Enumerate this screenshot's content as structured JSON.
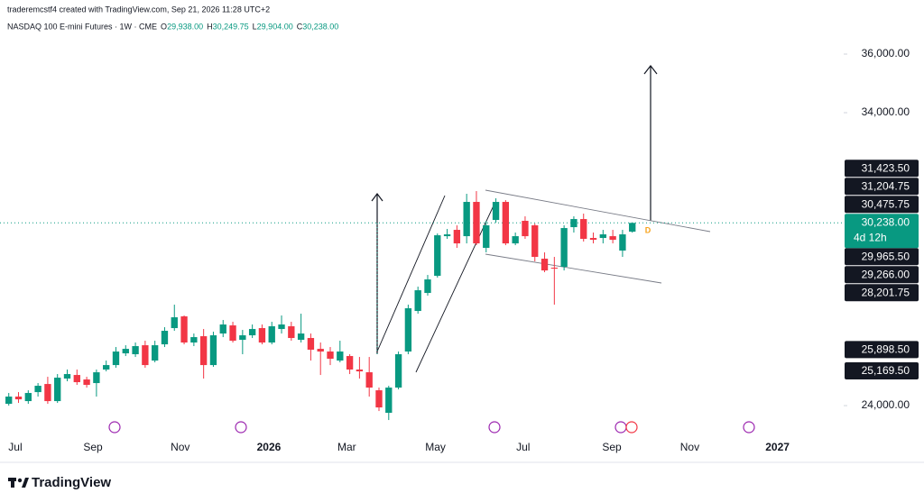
{
  "header": "traderemcstf4 created with TradingView.com, Sep 21, 2026 11:28 UTC+2",
  "footer": "TradingView",
  "chart_data": {
    "type": "candlestick",
    "title": "NASDAQ 100 E-mini Futures · 1W · CME",
    "ohlc_legend": [
      {
        "label": "O",
        "value": "29,938.00"
      },
      {
        "label": "H",
        "value": "30,249.75"
      },
      {
        "label": "L",
        "value": "29,904.00"
      },
      {
        "label": "C",
        "value": "30,238.00"
      }
    ],
    "up_color": "#089981",
    "down_color": "#f23645",
    "xlim": [
      -0.9,
      85.7
    ],
    "xticks": [
      {
        "value": 0.67,
        "label": "Jul"
      },
      {
        "value": 8.64,
        "label": "Sep"
      },
      {
        "value": 17.6,
        "label": "Nov"
      },
      {
        "value": 26.7,
        "label": "2026"
      },
      {
        "value": 34.7,
        "label": "Mar"
      },
      {
        "value": 43.8,
        "label": "May"
      },
      {
        "value": 52.8,
        "label": "Jul"
      },
      {
        "value": 61.9,
        "label": "Sep"
      },
      {
        "value": 69.9,
        "label": "Nov"
      },
      {
        "value": 78.9,
        "label": "2027"
      }
    ],
    "ylim": [
      23140,
      37385
    ],
    "yticks": [
      {
        "value": 24000,
        "label": "24,000.00"
      },
      {
        "value": 34000,
        "label": "34,000.00"
      },
      {
        "value": 36000,
        "label": "36,000.00"
      }
    ],
    "price_labels": [
      {
        "value": 31423.5,
        "label": "31,423.50"
      },
      {
        "value": 31204.75,
        "label": "31,204.75"
      },
      {
        "value": 30475.75,
        "label": "30,475.75"
      },
      {
        "value": 29965.5,
        "label": "29,965.50"
      },
      {
        "value": 29266,
        "label": "29,266.00"
      },
      {
        "value": 28201.75,
        "label": "28,201.75"
      },
      {
        "value": 25898.5,
        "label": "25,898.50"
      },
      {
        "value": 25169.5,
        "label": "25,169.50"
      }
    ],
    "last_price": {
      "value": 30238,
      "label": "30,238.00"
    },
    "countdown": "4d 12h",
    "open": [
      24061,
      24308,
      24154,
      24461,
      24738,
      24154,
      24923,
      25046,
      24892,
      24769,
      25231,
      25384,
      25784,
      25754,
      26061,
      25538,
      26092,
      26646,
      27046,
      26154,
      26369,
      25384,
      26461,
      26738,
      26246,
      26400,
      26646,
      26154,
      26615,
      26708,
      26246,
      26308,
      25938,
      25846,
      25538,
      25692,
      25231,
      25138,
      24523,
      23754,
      24615,
      25846,
      27231,
      27846,
      28431,
      29784,
      30000,
      29784,
      30954,
      29385,
      30338,
      30954,
      29538,
      30308,
      30154,
      29015,
      28708,
      28738,
      30092,
      30369,
      29723,
      29723,
      29784,
      29292,
      29938
    ],
    "high": [
      24431,
      24461,
      24523,
      24769,
      24984,
      25077,
      25231,
      25231,
      24984,
      25231,
      25538,
      26000,
      26061,
      26154,
      26215,
      26215,
      26677,
      27446,
      27077,
      26461,
      26615,
      26523,
      26923,
      26861,
      26584,
      26769,
      26769,
      26861,
      27077,
      26861,
      27138,
      26461,
      26154,
      26000,
      26215,
      25754,
      25661,
      25661,
      24615,
      24677,
      25846,
      27446,
      28061,
      28461,
      29877,
      30031,
      30154,
      31231,
      31323,
      30308,
      31077,
      31015,
      29908,
      30461,
      30215,
      29231,
      29077,
      30154,
      30461,
      30554,
      29908,
      30000,
      30000,
      30000,
      30249.75
    ],
    "low": [
      24000,
      24092,
      24061,
      24308,
      24061,
      24092,
      24831,
      24708,
      24615,
      24308,
      25169,
      25292,
      25692,
      25661,
      25292,
      25477,
      26000,
      26554,
      26092,
      26031,
      24923,
      25323,
      26338,
      26154,
      25754,
      26308,
      26092,
      26092,
      26461,
      26215,
      26154,
      25538,
      25046,
      25384,
      25477,
      25077,
      24923,
      24308,
      23815,
      23508,
      24554,
      25754,
      27138,
      27754,
      28369,
      29692,
      29385,
      29538,
      29477,
      29231,
      30246,
      29477,
      29477,
      29692,
      28923,
      28554,
      27446,
      28615,
      29908,
      29600,
      29538,
      29538,
      29538,
      29077,
      29904
    ],
    "close": [
      24308,
      24215,
      24431,
      24677,
      24154,
      24954,
      25077,
      24800,
      24708,
      25138,
      25384,
      25846,
      25938,
      26031,
      25384,
      26061,
      26554,
      27015,
      26154,
      26338,
      25384,
      26400,
      26769,
      26215,
      26400,
      26615,
      26154,
      26708,
      26769,
      26308,
      26461,
      25908,
      25846,
      25600,
      25846,
      25231,
      25169,
      24615,
      23938,
      24615,
      25754,
      27323,
      27938,
      28308,
      29815,
      29846,
      29538,
      30954,
      29538,
      30154,
      30954,
      29538,
      29784,
      29784,
      29077,
      28615,
      28677,
      30061,
      30369,
      29692,
      29661,
      29846,
      29661,
      29846,
      30238
    ]
  }
}
